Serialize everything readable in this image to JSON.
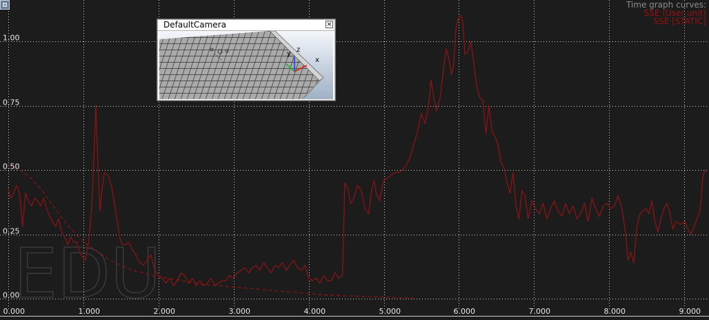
{
  "window": {
    "corner_button_icon": "window-menu-icon"
  },
  "camera_window": {
    "title": "DefaultCamera",
    "close_glyph": "×",
    "close_icon": "close-icon",
    "axis_labels": {
      "x": "x",
      "y": "y",
      "z": "z"
    }
  },
  "watermark": {
    "text": "EDU"
  },
  "colors": {
    "background": "#1c1c1c",
    "grid": "#d8d8d8",
    "series_user": "#8a1414",
    "series_static": "#8a1414",
    "legend_title": "#8c8c8c",
    "legend_entry": "#9b1010"
  },
  "chart_data": {
    "type": "line",
    "title": "",
    "xlabel": "",
    "ylabel": "",
    "xlim": [
      0,
      9.3
    ],
    "ylim": [
      0,
      1.12
    ],
    "grid": true,
    "legend_position": "top-right",
    "x_ticks": [
      0,
      1,
      2,
      3,
      4,
      5,
      6,
      7,
      8,
      9
    ],
    "x_tick_labels": [
      "0.000",
      "1.000",
      "2.000",
      "3.000",
      "4.000",
      "5.000",
      "6.000",
      "7.000",
      "8.000",
      "9.000"
    ],
    "y_ticks": [
      0,
      0.25,
      0.5,
      0.75,
      1
    ],
    "y_tick_labels": [
      "0.00",
      "0.25",
      "0.50",
      "0.75",
      "1.00"
    ],
    "legend_title": "Time graph curves:",
    "series": [
      {
        "name": "SSE (User unit)",
        "style": "solid",
        "points": [
          [
            0.0,
            0.43
          ],
          [
            0.03,
            0.39
          ],
          [
            0.07,
            0.41
          ],
          [
            0.11,
            0.44
          ],
          [
            0.15,
            0.41
          ],
          [
            0.19,
            0.28
          ],
          [
            0.23,
            0.41
          ],
          [
            0.27,
            0.38
          ],
          [
            0.31,
            0.36
          ],
          [
            0.35,
            0.39
          ],
          [
            0.39,
            0.38
          ],
          [
            0.43,
            0.36
          ],
          [
            0.47,
            0.39
          ],
          [
            0.51,
            0.35
          ],
          [
            0.55,
            0.32
          ],
          [
            0.59,
            0.3
          ],
          [
            0.63,
            0.28
          ],
          [
            0.67,
            0.31
          ],
          [
            0.71,
            0.26
          ],
          [
            0.75,
            0.24
          ],
          [
            0.79,
            0.21
          ],
          [
            0.83,
            0.24
          ],
          [
            0.87,
            0.22
          ],
          [
            0.91,
            0.22
          ],
          [
            0.95,
            0.18
          ],
          [
            0.99,
            0.16
          ],
          [
            1.03,
            0.15
          ],
          [
            1.07,
            0.22
          ],
          [
            1.11,
            0.35
          ],
          [
            1.14,
            0.55
          ],
          [
            1.165,
            0.75
          ],
          [
            1.19,
            0.55
          ],
          [
            1.22,
            0.34
          ],
          [
            1.25,
            0.43
          ],
          [
            1.28,
            0.49
          ],
          [
            1.33,
            0.48
          ],
          [
            1.38,
            0.43
          ],
          [
            1.43,
            0.34
          ],
          [
            1.48,
            0.24
          ],
          [
            1.52,
            0.21
          ],
          [
            1.56,
            0.21
          ],
          [
            1.6,
            0.22
          ],
          [
            1.65,
            0.19
          ],
          [
            1.7,
            0.17
          ],
          [
            1.75,
            0.14
          ],
          [
            1.8,
            0.13
          ],
          [
            1.85,
            0.15
          ],
          [
            1.9,
            0.17
          ],
          [
            1.95,
            0.11
          ],
          [
            2.0,
            0.09
          ],
          [
            2.05,
            0.08
          ],
          [
            2.1,
            0.06
          ],
          [
            2.15,
            0.08
          ],
          [
            2.2,
            0.05
          ],
          [
            2.25,
            0.07
          ],
          [
            2.3,
            0.1
          ],
          [
            2.35,
            0.09
          ],
          [
            2.4,
            0.06
          ],
          [
            2.45,
            0.08
          ],
          [
            2.5,
            0.05
          ],
          [
            2.55,
            0.07
          ],
          [
            2.6,
            0.05
          ],
          [
            2.65,
            0.06
          ],
          [
            2.7,
            0.08
          ],
          [
            2.75,
            0.05
          ],
          [
            2.8,
            0.06
          ],
          [
            2.85,
            0.07
          ],
          [
            2.9,
            0.07
          ],
          [
            2.95,
            0.09
          ],
          [
            3.0,
            0.08
          ],
          [
            3.05,
            0.1
          ],
          [
            3.1,
            0.11
          ],
          [
            3.15,
            0.12
          ],
          [
            3.2,
            0.1
          ],
          [
            3.25,
            0.12
          ],
          [
            3.3,
            0.13
          ],
          [
            3.35,
            0.11
          ],
          [
            3.4,
            0.14
          ],
          [
            3.45,
            0.12
          ],
          [
            3.5,
            0.1
          ],
          [
            3.55,
            0.13
          ],
          [
            3.6,
            0.12
          ],
          [
            3.65,
            0.14
          ],
          [
            3.7,
            0.11
          ],
          [
            3.75,
            0.13
          ],
          [
            3.8,
            0.15
          ],
          [
            3.85,
            0.12
          ],
          [
            3.9,
            0.11
          ],
          [
            3.95,
            0.13
          ],
          [
            4.0,
            0.08
          ],
          [
            4.05,
            0.07
          ],
          [
            4.1,
            0.08
          ],
          [
            4.15,
            0.06
          ],
          [
            4.2,
            0.09
          ],
          [
            4.25,
            0.07
          ],
          [
            4.3,
            0.07
          ],
          [
            4.35,
            0.1
          ],
          [
            4.4,
            0.08
          ],
          [
            4.45,
            0.09
          ],
          [
            4.48,
            0.45
          ],
          [
            4.52,
            0.43
          ],
          [
            4.56,
            0.37
          ],
          [
            4.6,
            0.39
          ],
          [
            4.65,
            0.44
          ],
          [
            4.7,
            0.42
          ],
          [
            4.75,
            0.35
          ],
          [
            4.8,
            0.33
          ],
          [
            4.83,
            0.41
          ],
          [
            4.87,
            0.46
          ],
          [
            4.9,
            0.41
          ],
          [
            4.94,
            0.38
          ],
          [
            4.97,
            0.42
          ],
          [
            5.0,
            0.46
          ],
          [
            5.05,
            0.47
          ],
          [
            5.1,
            0.48
          ],
          [
            5.15,
            0.49
          ],
          [
            5.2,
            0.49
          ],
          [
            5.25,
            0.5
          ],
          [
            5.3,
            0.52
          ],
          [
            5.35,
            0.55
          ],
          [
            5.4,
            0.6
          ],
          [
            5.45,
            0.65
          ],
          [
            5.5,
            0.72
          ],
          [
            5.55,
            0.68
          ],
          [
            5.6,
            0.76
          ],
          [
            5.63,
            0.85
          ],
          [
            5.67,
            0.77
          ],
          [
            5.7,
            0.73
          ],
          [
            5.75,
            0.78
          ],
          [
            5.79,
            0.88
          ],
          [
            5.83,
            0.97
          ],
          [
            5.87,
            0.93
          ],
          [
            5.9,
            0.87
          ],
          [
            5.93,
            0.91
          ],
          [
            5.96,
            1.05
          ],
          [
            5.99,
            1.09
          ],
          [
            6.02,
            1.1
          ],
          [
            6.05,
            1.08
          ],
          [
            6.08,
            0.95
          ],
          [
            6.12,
            0.96
          ],
          [
            6.16,
            1.0
          ],
          [
            6.2,
            0.91
          ],
          [
            6.24,
            0.82
          ],
          [
            6.28,
            0.78
          ],
          [
            6.32,
            0.77
          ],
          [
            6.36,
            0.64
          ],
          [
            6.4,
            0.75
          ],
          [
            6.44,
            0.65
          ],
          [
            6.48,
            0.63
          ],
          [
            6.52,
            0.6
          ],
          [
            6.56,
            0.53
          ],
          [
            6.6,
            0.51
          ],
          [
            6.64,
            0.45
          ],
          [
            6.68,
            0.41
          ],
          [
            6.72,
            0.49
          ],
          [
            6.76,
            0.36
          ],
          [
            6.8,
            0.31
          ],
          [
            6.84,
            0.42
          ],
          [
            6.88,
            0.4
          ],
          [
            6.92,
            0.31
          ],
          [
            6.97,
            0.38
          ],
          [
            7.02,
            0.35
          ],
          [
            7.07,
            0.33
          ],
          [
            7.12,
            0.37
          ],
          [
            7.17,
            0.31
          ],
          [
            7.22,
            0.35
          ],
          [
            7.27,
            0.38
          ],
          [
            7.32,
            0.34
          ],
          [
            7.37,
            0.32
          ],
          [
            7.42,
            0.37
          ],
          [
            7.47,
            0.33
          ],
          [
            7.52,
            0.36
          ],
          [
            7.57,
            0.31
          ],
          [
            7.62,
            0.33
          ],
          [
            7.67,
            0.37
          ],
          [
            7.72,
            0.3
          ],
          [
            7.77,
            0.39
          ],
          [
            7.82,
            0.35
          ],
          [
            7.87,
            0.32
          ],
          [
            7.92,
            0.36
          ],
          [
            7.97,
            0.37
          ],
          [
            8.02,
            0.35
          ],
          [
            8.07,
            0.36
          ],
          [
            8.12,
            0.4
          ],
          [
            8.17,
            0.35
          ],
          [
            8.22,
            0.25
          ],
          [
            8.25,
            0.15
          ],
          [
            8.29,
            0.18
          ],
          [
            8.33,
            0.14
          ],
          [
            8.37,
            0.28
          ],
          [
            8.41,
            0.33
          ],
          [
            8.45,
            0.34
          ],
          [
            8.49,
            0.35
          ],
          [
            8.53,
            0.33
          ],
          [
            8.57,
            0.38
          ],
          [
            8.61,
            0.3
          ],
          [
            8.65,
            0.26
          ],
          [
            8.69,
            0.31
          ],
          [
            8.73,
            0.35
          ],
          [
            8.77,
            0.37
          ],
          [
            8.81,
            0.33
          ],
          [
            8.85,
            0.27
          ],
          [
            8.89,
            0.3
          ],
          [
            8.93,
            0.29
          ],
          [
            8.97,
            0.29
          ],
          [
            9.01,
            0.3
          ],
          [
            9.05,
            0.27
          ],
          [
            9.09,
            0.25
          ],
          [
            9.13,
            0.28
          ],
          [
            9.17,
            0.31
          ],
          [
            9.21,
            0.34
          ],
          [
            9.25,
            0.48
          ],
          [
            9.28,
            0.5
          ]
        ]
      },
      {
        "name": "SSE [STATIC]",
        "style": "dashed",
        "points": [
          [
            0.0,
            0.52
          ],
          [
            0.15,
            0.5
          ],
          [
            0.3,
            0.47
          ],
          [
            0.45,
            0.42
          ],
          [
            0.6,
            0.36
          ],
          [
            0.75,
            0.3
          ],
          [
            0.9,
            0.25
          ],
          [
            1.05,
            0.21
          ],
          [
            1.2,
            0.18
          ],
          [
            1.35,
            0.15
          ],
          [
            1.5,
            0.13
          ],
          [
            1.65,
            0.11
          ],
          [
            1.8,
            0.1
          ],
          [
            2.0,
            0.085
          ],
          [
            2.2,
            0.075
          ],
          [
            2.4,
            0.065
          ],
          [
            2.6,
            0.055
          ],
          [
            2.8,
            0.05
          ],
          [
            3.0,
            0.045
          ],
          [
            3.2,
            0.04
          ],
          [
            3.4,
            0.035
          ],
          [
            3.6,
            0.03
          ],
          [
            3.8,
            0.025
          ],
          [
            4.0,
            0.02
          ],
          [
            4.2,
            0.015
          ],
          [
            4.4,
            0.012
          ],
          [
            4.6,
            0.01
          ],
          [
            4.8,
            0.008
          ],
          [
            5.0,
            0.006
          ],
          [
            5.2,
            0.004
          ],
          [
            5.4,
            0.003
          ]
        ]
      }
    ]
  }
}
